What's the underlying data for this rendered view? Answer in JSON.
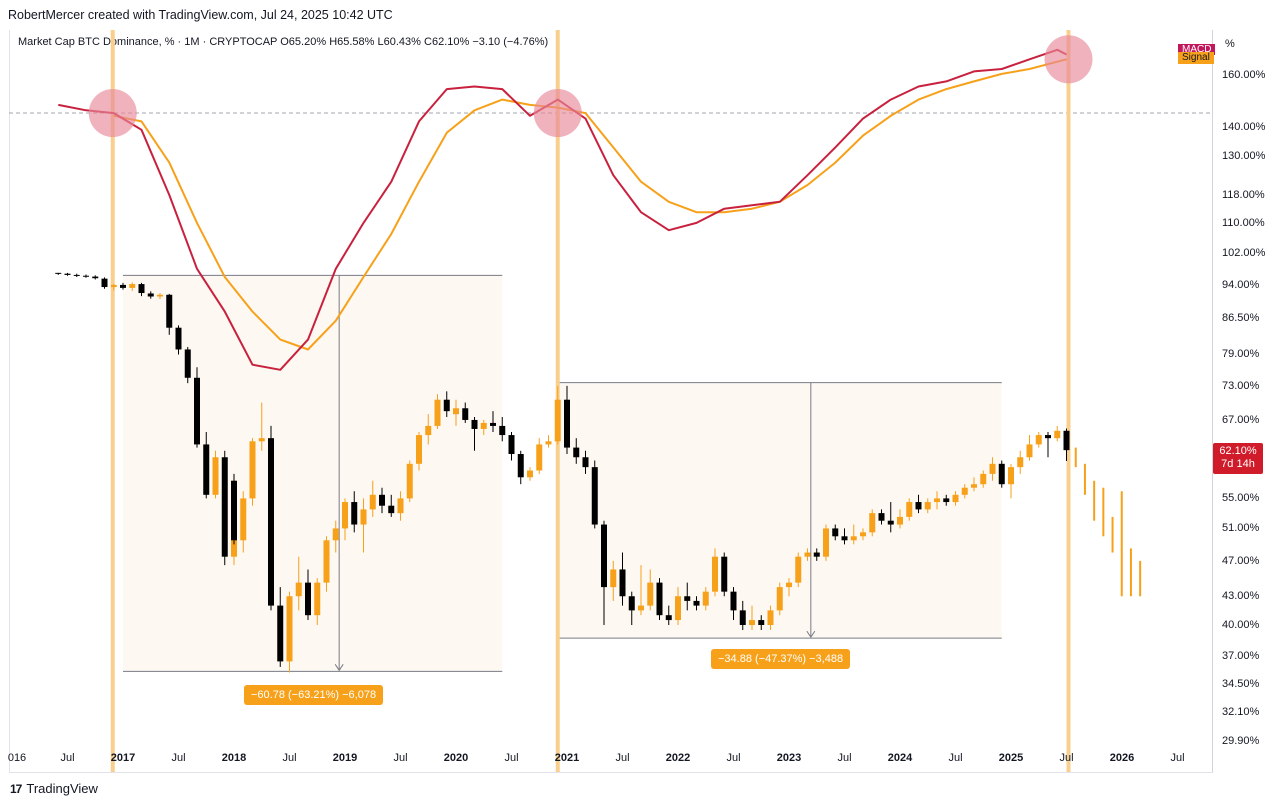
{
  "header": {
    "author_line": "RobertMercer created with TradingView.com, Jul 24, 2025 10:42 UTC"
  },
  "legend": {
    "symbol": "Market Cap BTC Dominance, % · 1M · CRYPTOCAP",
    "open": "O65.20%",
    "high": "H65.58%",
    "low": "L60.43%",
    "close": "C62.10%",
    "change": "−3.10 (−4.76%)"
  },
  "axis": {
    "unit": "%",
    "y_ticks": [
      "160.00%",
      "140.00%",
      "130.00%",
      "118.00%",
      "110.00%",
      "102.00%",
      "94.00%",
      "86.50%",
      "79.00%",
      "73.00%",
      "67.00%",
      "55.00%",
      "51.00%",
      "47.00%",
      "43.00%",
      "40.00%",
      "37.00%",
      "34.50%",
      "32.10%",
      "29.90%"
    ],
    "x_ticks": [
      {
        "label": "016",
        "bold": false
      },
      {
        "label": "Jul",
        "bold": false
      },
      {
        "label": "2017",
        "bold": true
      },
      {
        "label": "Jul",
        "bold": false
      },
      {
        "label": "2018",
        "bold": true
      },
      {
        "label": "Jul",
        "bold": false
      },
      {
        "label": "2019",
        "bold": true
      },
      {
        "label": "Jul",
        "bold": false
      },
      {
        "label": "2020",
        "bold": true
      },
      {
        "label": "Jul",
        "bold": false
      },
      {
        "label": "2021",
        "bold": true
      },
      {
        "label": "Jul",
        "bold": false
      },
      {
        "label": "2022",
        "bold": true
      },
      {
        "label": "Jul",
        "bold": false
      },
      {
        "label": "2023",
        "bold": true
      },
      {
        "label": "Jul",
        "bold": false
      },
      {
        "label": "2024",
        "bold": true
      },
      {
        "label": "Jul",
        "bold": false
      },
      {
        "label": "2025",
        "bold": true
      },
      {
        "label": "Jul",
        "bold": false
      },
      {
        "label": "2026",
        "bold": true
      },
      {
        "label": "Jul",
        "bold": false
      }
    ]
  },
  "price_tag": {
    "value": "62.10%",
    "countdown": "7d 14h"
  },
  "indicator_tags": {
    "macd": "MACD",
    "signal": "Signal"
  },
  "measurements": [
    {
      "text": "−60.78 (−63.21%) −6,078"
    },
    {
      "text": "−34.88 (−47.37%) −3,488"
    }
  ],
  "footer": {
    "brand": "TradingView",
    "logo": "17"
  },
  "colors": {
    "up": "#f7a11a",
    "down": "#000000",
    "macd": "#c8213e",
    "signal": "#f7a11a",
    "highlight": "#f9cf8e",
    "circle": "#e8899a",
    "box": "#fdf8f1",
    "price_tag": "#d01c2a"
  },
  "chart_data": {
    "type": "candlestick",
    "title": "Market Cap BTC Dominance, % · 1M · CRYPTOCAP",
    "scale": "log",
    "x_range": [
      "2016-06",
      "2026-10"
    ],
    "ylim": [
      29.9,
      165
    ],
    "candles": [
      [
        "2016-06",
        97,
        97,
        96.5,
        96.8
      ],
      [
        "2016-07",
        96.8,
        97,
        96.3,
        96.5
      ],
      [
        "2016-08",
        96.5,
        96.8,
        96,
        96.3
      ],
      [
        "2016-09",
        96.3,
        96.6,
        95.8,
        96.1
      ],
      [
        "2016-10",
        96.1,
        96.4,
        95.4,
        95.7
      ],
      [
        "2016-11",
        95.6,
        95.9,
        93.2,
        93.6
      ],
      [
        "2016-12",
        93.6,
        94.3,
        92.8,
        94.1
      ],
      [
        "2017-01",
        94.1,
        94.6,
        93.0,
        93.4
      ],
      [
        "2017-02",
        93.4,
        94.7,
        92.7,
        94.3
      ],
      [
        "2017-03",
        94.3,
        94.6,
        91.5,
        92.2
      ],
      [
        "2017-04",
        92.1,
        92.6,
        90.9,
        91.4
      ],
      [
        "2017-05",
        91.4,
        92.2,
        90.8,
        91.8
      ],
      [
        "2017-06",
        91.8,
        92.0,
        83.0,
        84.5
      ],
      [
        "2017-07",
        84.5,
        85.0,
        79.0,
        80.0
      ],
      [
        "2017-08",
        80.0,
        80.5,
        73.5,
        74.5
      ],
      [
        "2017-09",
        74.5,
        76.5,
        62.5,
        63.0
      ],
      [
        "2017-10",
        63.0,
        65.0,
        55.0,
        55.5
      ],
      [
        "2017-11",
        55.5,
        62.0,
        55.0,
        61.0
      ],
      [
        "2017-12",
        61.0,
        62.0,
        46.5,
        47.5
      ],
      [
        "2017-13",
        47.5,
        58.0,
        46.5,
        57.5
      ],
      [
        "2018-01",
        57.5,
        58.5,
        49.0,
        49.5
      ],
      [
        "2018-02",
        49.5,
        56.0,
        48.0,
        55.0
      ],
      [
        "2018-03",
        55.0,
        64.0,
        54.0,
        63.5
      ],
      [
        "2018-04",
        63.5,
        70.0,
        62.0,
        64.0
      ],
      [
        "2018-05",
        64.0,
        66.0,
        41.5,
        42.0
      ],
      [
        "2018-06",
        42.0,
        44.0,
        36.0,
        36.5
      ],
      [
        "2018-07",
        36.5,
        43.5,
        35.5,
        43.0
      ],
      [
        "2018-08",
        43.0,
        47.5,
        41.5,
        44.5
      ],
      [
        "2018-09",
        44.5,
        46.0,
        40.5,
        41.0
      ],
      [
        "2018-10",
        41.0,
        45.0,
        40.0,
        44.5
      ],
      [
        "2018-11",
        44.5,
        50.0,
        43.5,
        49.5
      ],
      [
        "2018-12",
        49.5,
        52.0,
        48.0,
        51.0
      ],
      [
        "2019-01",
        51.0,
        55.0,
        49.5,
        54.5
      ],
      [
        "2019-02",
        54.5,
        56.0,
        50.5,
        51.5
      ],
      [
        "2019-03",
        51.5,
        55.0,
        48.0,
        53.5
      ],
      [
        "2019-04",
        53.5,
        57.5,
        52.5,
        55.5
      ],
      [
        "2019-05",
        55.5,
        56.5,
        53.0,
        54.0
      ],
      [
        "2019-06",
        54.0,
        55.5,
        52.5,
        53.0
      ],
      [
        "2019-07",
        53.0,
        56.0,
        52.0,
        55.0
      ],
      [
        "2019-08",
        55.0,
        60.5,
        54.5,
        60.0
      ],
      [
        "2019-09",
        60.0,
        65.0,
        59.0,
        64.5
      ],
      [
        "2019-10",
        64.5,
        68.0,
        63.0,
        66.0
      ],
      [
        "2019-11",
        66.0,
        71.5,
        65.5,
        70.5
      ],
      [
        "2019-12",
        70.5,
        72.0,
        67.5,
        68.5
      ],
      [
        "2019-13",
        68.5,
        70.0,
        67.0,
        68.0
      ],
      [
        "2020-01",
        68.0,
        70.5,
        66.0,
        69.0
      ],
      [
        "2020-02",
        69.0,
        70.0,
        66.5,
        67.0
      ],
      [
        "2020-03",
        67.0,
        67.5,
        62.0,
        65.5
      ],
      [
        "2020-04",
        65.5,
        67.0,
        64.5,
        66.5
      ],
      [
        "2020-05",
        66.5,
        68.5,
        65.0,
        66.0
      ],
      [
        "2020-06",
        66.0,
        67.5,
        63.5,
        64.5
      ],
      [
        "2020-07",
        64.5,
        65.0,
        60.5,
        61.5
      ],
      [
        "2020-08",
        61.5,
        62.0,
        57.0,
        58.0
      ],
      [
        "2020-09",
        58.0,
        59.5,
        57.5,
        59.0
      ],
      [
        "2020-10",
        59.0,
        64.0,
        58.5,
        63.0
      ],
      [
        "2020-11",
        63.0,
        64.5,
        62.5,
        63.5
      ],
      [
        "2020-12",
        63.5,
        73.0,
        63.0,
        70.5
      ],
      [
        "2021-01",
        70.5,
        73.0,
        61.5,
        62.5
      ],
      [
        "2021-02",
        62.5,
        64.0,
        60.0,
        61.0
      ],
      [
        "2021-03",
        61.0,
        62.0,
        58.5,
        59.5
      ],
      [
        "2021-04",
        59.5,
        60.5,
        51.0,
        51.5
      ],
      [
        "2021-05",
        51.5,
        52.0,
        40.0,
        44.0
      ],
      [
        "2021-06",
        44.0,
        47.0,
        42.5,
        46.0
      ],
      [
        "2021-07",
        46.0,
        48.0,
        42.0,
        43.0
      ],
      [
        "2021-08",
        43.0,
        43.5,
        40.0,
        41.5
      ],
      [
        "2021-09",
        41.5,
        46.5,
        41.0,
        42.0
      ],
      [
        "2021-10",
        42.0,
        46.0,
        41.5,
        44.5
      ],
      [
        "2021-11",
        44.5,
        45.0,
        40.5,
        41.0
      ],
      [
        "2021-12",
        41.0,
        42.0,
        40.0,
        40.5
      ],
      [
        "2022-01",
        40.5,
        44.0,
        40.0,
        43.0
      ],
      [
        "2022-02",
        43.0,
        44.5,
        41.5,
        42.5
      ],
      [
        "2022-03",
        42.5,
        43.0,
        41.5,
        42.0
      ],
      [
        "2022-04",
        42.0,
        44.0,
        41.5,
        43.5
      ],
      [
        "2022-05",
        43.5,
        48.5,
        43.0,
        47.5
      ],
      [
        "2022-06",
        47.5,
        48.0,
        43.0,
        43.5
      ],
      [
        "2022-07",
        43.5,
        44.0,
        40.5,
        41.5
      ],
      [
        "2022-08",
        41.5,
        42.5,
        39.5,
        40.0
      ],
      [
        "2022-09",
        40.0,
        42.0,
        39.5,
        40.5
      ],
      [
        "2022-10",
        40.5,
        41.0,
        39.5,
        40.0
      ],
      [
        "2022-11",
        40.0,
        42.0,
        39.5,
        41.5
      ],
      [
        "2022-12",
        41.5,
        44.5,
        41.0,
        44.0
      ],
      [
        "2023-01",
        44.0,
        45.0,
        43.0,
        44.5
      ],
      [
        "2023-02",
        44.5,
        48.0,
        44.0,
        47.5
      ],
      [
        "2023-03",
        47.5,
        48.5,
        47.0,
        48.0
      ],
      [
        "2023-04",
        48.0,
        48.5,
        47.0,
        47.5
      ],
      [
        "2023-05",
        47.5,
        51.5,
        47.0,
        51.0
      ],
      [
        "2023-06",
        51.0,
        51.5,
        49.5,
        50.0
      ],
      [
        "2023-07",
        50.0,
        51.0,
        49.0,
        49.5
      ],
      [
        "2023-08",
        49.5,
        51.5,
        49.0,
        50.0
      ],
      [
        "2023-09",
        50.0,
        51.0,
        49.5,
        50.5
      ],
      [
        "2023-10",
        50.5,
        53.5,
        50.0,
        53.0
      ],
      [
        "2023-11",
        53.0,
        53.5,
        51.5,
        52.0
      ],
      [
        "2023-12",
        52.0,
        54.5,
        50.5,
        51.5
      ],
      [
        "2024-01",
        51.5,
        53.5,
        51.0,
        52.5
      ],
      [
        "2024-02",
        52.5,
        55.0,
        52.0,
        54.5
      ],
      [
        "2024-03",
        54.5,
        55.5,
        53.0,
        53.5
      ],
      [
        "2024-04",
        53.5,
        55.0,
        53.0,
        54.5
      ],
      [
        "2024-05",
        54.5,
        56.0,
        53.5,
        55.0
      ],
      [
        "2024-06",
        55.0,
        55.5,
        54.0,
        54.5
      ],
      [
        "2024-07",
        54.5,
        56.0,
        54.0,
        55.5
      ],
      [
        "2024-08",
        55.5,
        57.0,
        55.0,
        56.5
      ],
      [
        "2024-09",
        56.5,
        58.0,
        56.0,
        57.0
      ],
      [
        "2024-10",
        57.0,
        59.0,
        56.5,
        58.5
      ],
      [
        "2024-11",
        58.5,
        61.0,
        57.5,
        60.0
      ],
      [
        "2024-12",
        60.0,
        60.5,
        56.5,
        57.0
      ],
      [
        "2025-01",
        57.0,
        60.0,
        55.0,
        59.5
      ],
      [
        "2025-02",
        59.5,
        62.0,
        58.5,
        61.0
      ],
      [
        "2025-03",
        61.0,
        64.5,
        60.5,
        63.0
      ],
      [
        "2025-04",
        63.0,
        65.0,
        62.5,
        64.5
      ],
      [
        "2025-05",
        64.5,
        65.0,
        61.0,
        64.0
      ],
      [
        "2025-06",
        64.0,
        66.0,
        63.5,
        65.2
      ],
      [
        "2025-07",
        65.2,
        65.58,
        60.43,
        62.1
      ]
    ],
    "macd": [
      [
        "2016-06",
        148
      ],
      [
        "2016-09",
        146
      ],
      [
        "2016-12",
        145
      ],
      [
        "2017-03",
        139
      ],
      [
        "2017-06",
        118
      ],
      [
        "2017-09",
        98
      ],
      [
        "2017-12",
        88
      ],
      [
        "2018-03",
        77
      ],
      [
        "2018-06",
        76
      ],
      [
        "2018-09",
        82
      ],
      [
        "2018-12",
        98
      ],
      [
        "2019-03",
        110
      ],
      [
        "2019-06",
        122
      ],
      [
        "2019-09",
        142
      ],
      [
        "2019-12",
        154
      ],
      [
        "2020-03",
        155
      ],
      [
        "2020-06",
        154
      ],
      [
        "2020-09",
        144
      ],
      [
        "2020-12",
        150
      ],
      [
        "2021-03",
        143
      ],
      [
        "2021-06",
        124
      ],
      [
        "2021-09",
        113
      ],
      [
        "2021-12",
        108
      ],
      [
        "2022-03",
        110
      ],
      [
        "2022-06",
        114
      ],
      [
        "2022-09",
        115
      ],
      [
        "2022-12",
        116
      ],
      [
        "2023-03",
        124
      ],
      [
        "2023-06",
        133
      ],
      [
        "2023-09",
        143
      ],
      [
        "2023-12",
        150
      ],
      [
        "2024-03",
        155
      ],
      [
        "2024-06",
        157
      ],
      [
        "2024-09",
        161
      ],
      [
        "2024-12",
        162
      ],
      [
        "2025-03",
        166
      ],
      [
        "2025-06",
        170
      ],
      [
        "2025-07",
        168
      ]
    ],
    "signal": [
      [
        "2016-12",
        144
      ],
      [
        "2017-03",
        142
      ],
      [
        "2017-06",
        128
      ],
      [
        "2017-09",
        110
      ],
      [
        "2017-12",
        96
      ],
      [
        "2018-03",
        88
      ],
      [
        "2018-06",
        82
      ],
      [
        "2018-09",
        80
      ],
      [
        "2018-12",
        86
      ],
      [
        "2019-03",
        96
      ],
      [
        "2019-06",
        107
      ],
      [
        "2019-09",
        122
      ],
      [
        "2019-12",
        138
      ],
      [
        "2020-03",
        146
      ],
      [
        "2020-06",
        150
      ],
      [
        "2020-09",
        148
      ],
      [
        "2020-12",
        147
      ],
      [
        "2021-03",
        145
      ],
      [
        "2021-06",
        133
      ],
      [
        "2021-09",
        122
      ],
      [
        "2021-12",
        116
      ],
      [
        "2022-03",
        113
      ],
      [
        "2022-06",
        113
      ],
      [
        "2022-09",
        114
      ],
      [
        "2022-12",
        116
      ],
      [
        "2023-03",
        121
      ],
      [
        "2023-06",
        128
      ],
      [
        "2023-09",
        137
      ],
      [
        "2023-12",
        144
      ],
      [
        "2024-03",
        150
      ],
      [
        "2024-06",
        154
      ],
      [
        "2024-09",
        157
      ],
      [
        "2024-12",
        160
      ],
      [
        "2025-03",
        162
      ],
      [
        "2025-06",
        165
      ],
      [
        "2025-07",
        166
      ]
    ],
    "highlights": [
      "2016-12",
      "2020-12",
      "2025-07"
    ],
    "measure_boxes": [
      {
        "from": "2017-01",
        "to": "2020-06",
        "high": 96.4,
        "low": 35.6,
        "change": "−60.78 (−63.21%) −6,078"
      },
      {
        "from": "2020-12",
        "to": "2024-12",
        "high": 73.6,
        "low": 38.7,
        "change": "−34.88 (−47.37%) −3,488"
      }
    ],
    "projection_bars": [
      [
        62.5,
        59.5
      ],
      [
        60.0,
        55.5
      ],
      [
        57.5,
        52.0
      ],
      [
        56.5,
        50.0
      ],
      [
        52.5,
        48.0
      ],
      [
        56.0,
        43.0
      ],
      [
        48.5,
        43.0
      ],
      [
        47.0,
        43.0
      ]
    ]
  }
}
